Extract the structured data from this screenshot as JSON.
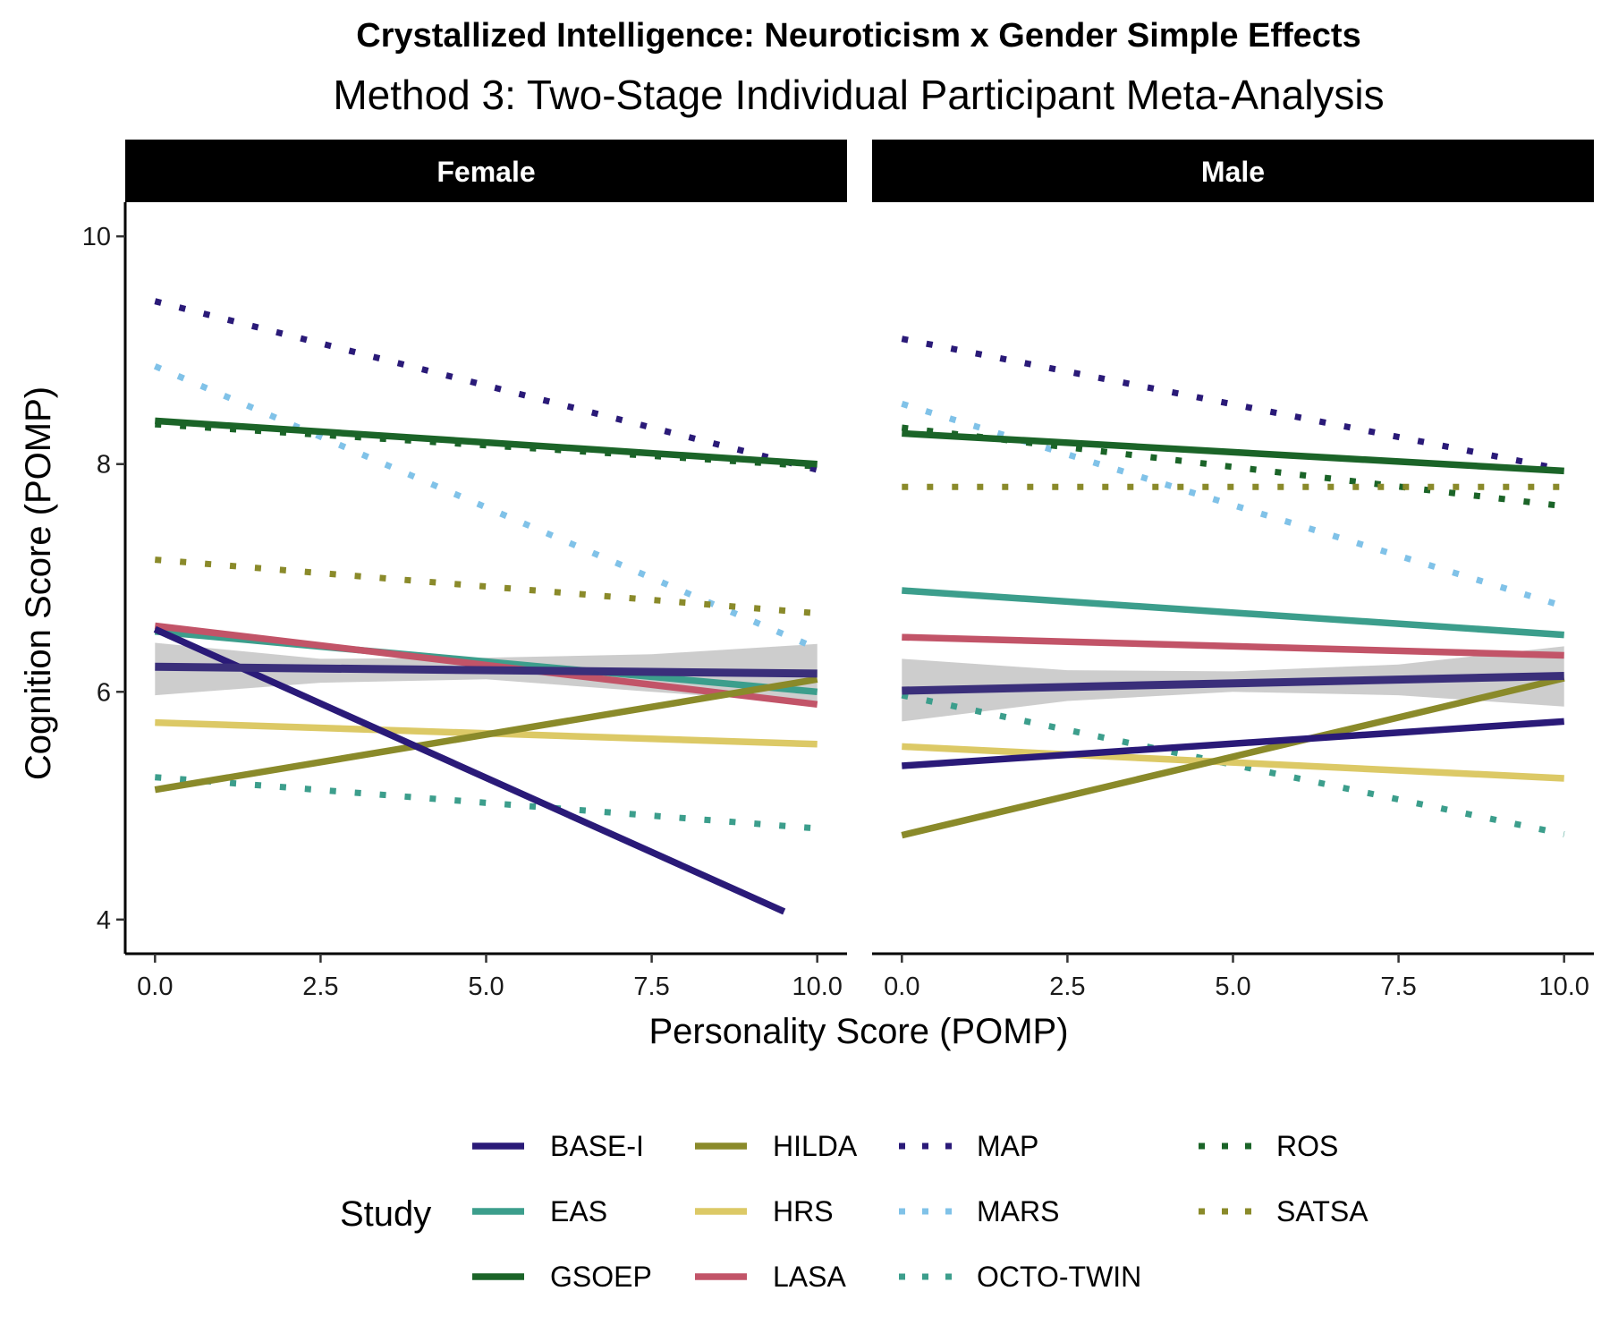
{
  "chart_data": {
    "type": "line",
    "title": "Crystallized Intelligence: Neuroticism x Gender Simple Effects",
    "subtitle": "Method 3: Two-Stage Individual Participant Meta-Analysis",
    "xlabel": "Personality Score (POMP)",
    "ylabel": "Cognition Score (POMP)",
    "xlim": [
      -0.45,
      10.45
    ],
    "ylim": [
      3.7,
      10.3
    ],
    "x_ticks": [
      "0.0",
      "2.5",
      "5.0",
      "7.5",
      "10.0"
    ],
    "x_tick_values": [
      0,
      2.5,
      5,
      7.5,
      10
    ],
    "y_ticks": [
      "4",
      "6",
      "8",
      "10"
    ],
    "y_tick_values": [
      4,
      6,
      8,
      10
    ],
    "grid": false,
    "legend": {
      "title": "Study",
      "placement": "bottom",
      "entries": [
        "BASE-I",
        "EAS",
        "GSOEP",
        "HILDA",
        "HRS",
        "LASA",
        "MAP",
        "MARS",
        "OCTO-TWIN",
        "ROS",
        "SATSA"
      ]
    },
    "colors": {
      "BASE-I": "#2a1a78",
      "EAS": "#3c9e8c",
      "GSOEP": "#1b6428",
      "HILDA": "#8a8a2a",
      "HRS": "#dcc966",
      "LASA": "#c25468",
      "MAP": "#2a1a78",
      "MARS": "#80c2e8",
      "OCTO-TWIN": "#3c9e8c",
      "ROS": "#1b6428",
      "SATSA": "#8a8a2a",
      "Overall": "#3a2f7a",
      "Ribbon": "#c8c8c8"
    },
    "linetypes": {
      "BASE-I": "solid",
      "EAS": "solid",
      "GSOEP": "solid",
      "HILDA": "solid",
      "HRS": "solid",
      "LASA": "solid",
      "MAP": "dotted",
      "MARS": "dotted",
      "OCTO-TWIN": "dotted",
      "ROS": "dotted",
      "SATSA": "dotted"
    },
    "panels": [
      {
        "label": "Female",
        "ribbon": {
          "x": [
            0,
            2.5,
            5,
            7.5,
            10
          ],
          "upper": [
            6.43,
            6.29,
            6.3,
            6.33,
            6.42
          ],
          "lower": [
            5.97,
            6.08,
            6.11,
            6.0,
            5.9
          ]
        },
        "overall": {
          "x": [
            0,
            10
          ],
          "y": [
            6.22,
            6.16
          ]
        },
        "series": [
          {
            "name": "ROS",
            "x": [
              0,
              10
            ],
            "y": [
              8.35,
              7.98
            ]
          },
          {
            "name": "MAP",
            "x": [
              0,
              10
            ],
            "y": [
              9.43,
              7.95
            ]
          },
          {
            "name": "MARS",
            "x": [
              0,
              10
            ],
            "y": [
              8.86,
              6.38
            ]
          },
          {
            "name": "SATSA",
            "x": [
              0,
              10
            ],
            "y": [
              7.16,
              6.69
            ]
          },
          {
            "name": "OCTO-TWIN",
            "x": [
              0,
              10
            ],
            "y": [
              5.25,
              4.8
            ]
          },
          {
            "name": "GSOEP",
            "x": [
              0,
              10
            ],
            "y": [
              8.38,
              8.0
            ]
          },
          {
            "name": "EAS",
            "x": [
              0,
              10
            ],
            "y": [
              6.53,
              6.0
            ]
          },
          {
            "name": "LASA",
            "x": [
              0,
              10
            ],
            "y": [
              6.58,
              5.89
            ]
          },
          {
            "name": "HRS",
            "x": [
              0,
              10
            ],
            "y": [
              5.73,
              5.54
            ]
          },
          {
            "name": "HILDA",
            "x": [
              0,
              10
            ],
            "y": [
              5.14,
              6.11
            ]
          },
          {
            "name": "BASE-I",
            "x": [
              0,
              9.5
            ],
            "y": [
              6.55,
              4.07
            ]
          }
        ]
      },
      {
        "label": "Male",
        "ribbon": {
          "x": [
            0,
            2.5,
            5,
            7.5,
            10
          ],
          "upper": [
            6.29,
            6.19,
            6.18,
            6.24,
            6.4
          ],
          "lower": [
            5.74,
            5.92,
            6.0,
            5.97,
            5.87
          ]
        },
        "overall": {
          "x": [
            0,
            10
          ],
          "y": [
            6.01,
            6.14
          ]
        },
        "series": [
          {
            "name": "MAP",
            "x": [
              0,
              10
            ],
            "y": [
              9.1,
              7.95
            ]
          },
          {
            "name": "MARS",
            "x": [
              0,
              10
            ],
            "y": [
              8.53,
              6.75
            ]
          },
          {
            "name": "ROS",
            "x": [
              0,
              10
            ],
            "y": [
              8.32,
              7.63
            ]
          },
          {
            "name": "SATSA",
            "x": [
              0,
              10
            ],
            "y": [
              7.8,
              7.8
            ]
          },
          {
            "name": "OCTO-TWIN",
            "x": [
              0,
              10
            ],
            "y": [
              5.97,
              4.75
            ]
          },
          {
            "name": "GSOEP",
            "x": [
              0,
              10
            ],
            "y": [
              8.27,
              7.94
            ]
          },
          {
            "name": "EAS",
            "x": [
              0,
              10
            ],
            "y": [
              6.89,
              6.5
            ]
          },
          {
            "name": "LASA",
            "x": [
              0,
              10
            ],
            "y": [
              6.48,
              6.32
            ]
          },
          {
            "name": "HRS",
            "x": [
              0,
              10
            ],
            "y": [
              5.52,
              5.24
            ]
          },
          {
            "name": "HILDA",
            "x": [
              0,
              10
            ],
            "y": [
              4.74,
              6.12
            ]
          },
          {
            "name": "BASE-I",
            "x": [
              0,
              10
            ],
            "y": [
              5.35,
              5.74
            ]
          }
        ]
      }
    ]
  }
}
